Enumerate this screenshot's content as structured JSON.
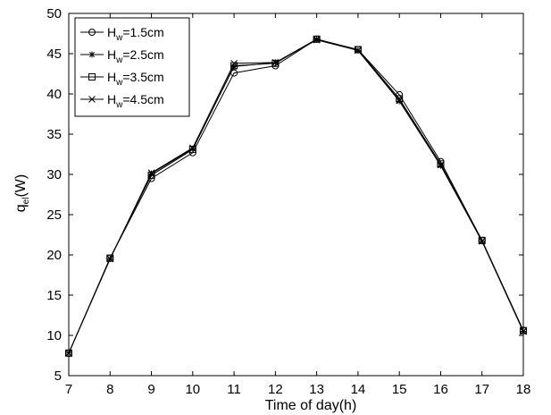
{
  "chart_data": {
    "type": "line",
    "title": "",
    "xlabel": "Time of day(h)",
    "ylabel": {
      "base": "q",
      "sub": "el",
      "rest": "(W)"
    },
    "xlim": [
      7,
      18
    ],
    "ylim": [
      5,
      50
    ],
    "xticks": [
      7,
      8,
      9,
      10,
      11,
      12,
      13,
      14,
      15,
      16,
      17,
      18
    ],
    "yticks": [
      5,
      10,
      15,
      20,
      25,
      30,
      35,
      40,
      45,
      50
    ],
    "grid": false,
    "legend_position": "top-left",
    "x": [
      7,
      8,
      9,
      10,
      11,
      12,
      13,
      14,
      15,
      16,
      17,
      18
    ],
    "series": [
      {
        "name": {
          "base": "H",
          "sub": "w",
          "rest": "=1.5cm"
        },
        "marker": "circle",
        "values": [
          7.8,
          19.6,
          29.5,
          32.7,
          42.6,
          43.5,
          46.8,
          45.5,
          39.9,
          31.6,
          21.8,
          10.6
        ]
      },
      {
        "name": {
          "base": "H",
          "sub": "w",
          "rest": "=2.5cm"
        },
        "marker": "asterisk",
        "values": [
          7.8,
          19.5,
          30.1,
          33.2,
          43.4,
          43.9,
          46.8,
          45.4,
          39.1,
          31.1,
          21.7,
          10.5
        ]
      },
      {
        "name": {
          "base": "H",
          "sub": "w",
          "rest": "=3.5cm"
        },
        "marker": "square",
        "values": [
          7.8,
          19.6,
          29.9,
          33.1,
          43.5,
          43.8,
          46.8,
          45.5,
          39.4,
          31.3,
          21.8,
          10.6
        ]
      },
      {
        "name": {
          "base": "H",
          "sub": "w",
          "rest": "=4.5cm"
        },
        "marker": "cross",
        "values": [
          7.8,
          19.5,
          30.2,
          33.3,
          43.8,
          43.9,
          46.7,
          45.4,
          39.2,
          31.2,
          21.7,
          10.5
        ]
      }
    ]
  }
}
